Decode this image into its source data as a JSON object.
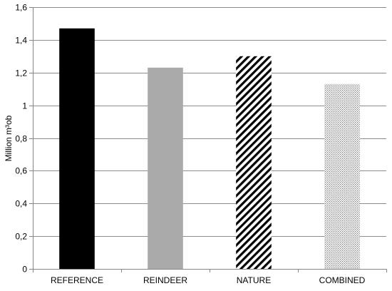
{
  "chart_data": {
    "type": "bar",
    "title": "",
    "xlabel": "",
    "ylabel": "Million m³ob",
    "categories": [
      "REFERENCE",
      "REINDEER",
      "NATURE",
      "COMBINED"
    ],
    "values": [
      1.47,
      1.23,
      1.3,
      1.13
    ],
    "fills": [
      "solid-black",
      "solid-gray",
      "diagonal-hatch",
      "dotted"
    ],
    "colors": {
      "reference": "#000000",
      "reindeer": "#aaaaaa",
      "hatch": "#000000",
      "dots": "#7a7a7a",
      "gridline": "#8c8c8c",
      "axis": "#868686"
    },
    "ylim": [
      0,
      1.6
    ],
    "yticks": [
      0,
      0.2,
      0.4,
      0.6,
      0.8,
      1.0,
      1.2,
      1.4,
      1.6
    ],
    "ytick_labels": [
      "0",
      "0,2",
      "0,4",
      "0,6",
      "0,8",
      "1",
      "1,2",
      "1,4",
      "1,6"
    ],
    "grid": true,
    "legend": "none"
  }
}
